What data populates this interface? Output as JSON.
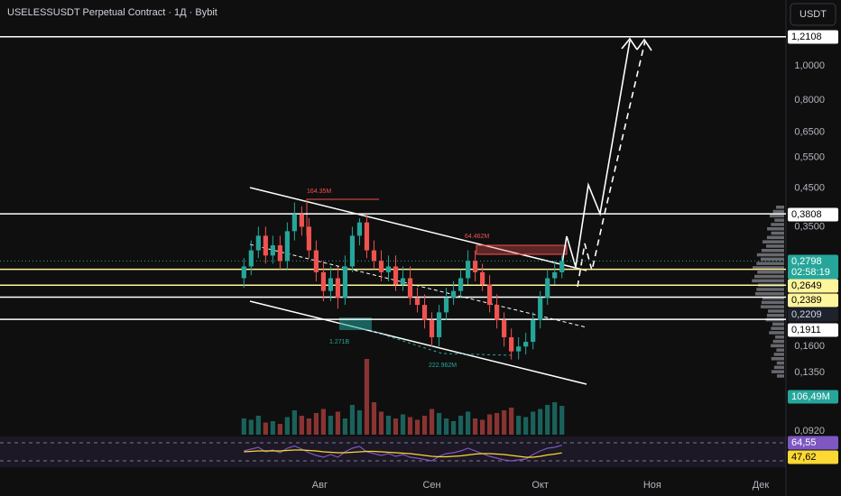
{
  "chart_data": {
    "type": "candlestick",
    "title": "USELESSUSDT Perpetual Contract · 1Д · Bybit",
    "currency": "USDT",
    "log_scale": true,
    "x": [
      0,
      2,
      4,
      6,
      8,
      10,
      12,
      14,
      16,
      18,
      20,
      22,
      24,
      26,
      28,
      30,
      32,
      34,
      36,
      38,
      40,
      42,
      44,
      46,
      48,
      50,
      52,
      54,
      56,
      58,
      60,
      62,
      64,
      66,
      68,
      70,
      72,
      74,
      76,
      78,
      80,
      82,
      84,
      86,
      88
    ],
    "open": [
      0.25,
      0.27,
      0.3,
      0.33,
      0.29,
      0.31,
      0.28,
      0.34,
      0.38,
      0.35,
      0.3,
      0.26,
      0.23,
      0.25,
      0.22,
      0.27,
      0.33,
      0.36,
      0.3,
      0.28,
      0.26,
      0.27,
      0.24,
      0.25,
      0.22,
      0.21,
      0.19,
      0.17,
      0.2,
      0.22,
      0.23,
      0.25,
      0.28,
      0.26,
      0.24,
      0.21,
      0.19,
      0.17,
      0.155,
      0.16,
      0.165,
      0.19,
      0.22,
      0.25,
      0.26
    ],
    "high": [
      0.285,
      0.32,
      0.35,
      0.35,
      0.33,
      0.33,
      0.36,
      0.41,
      0.4,
      0.37,
      0.32,
      0.28,
      0.27,
      0.27,
      0.29,
      0.35,
      0.37,
      0.38,
      0.32,
      0.3,
      0.29,
      0.29,
      0.27,
      0.27,
      0.235,
      0.225,
      0.2,
      0.21,
      0.235,
      0.245,
      0.265,
      0.3,
      0.3,
      0.275,
      0.255,
      0.225,
      0.2,
      0.18,
      0.17,
      0.175,
      0.2,
      0.23,
      0.265,
      0.28,
      0.29
    ],
    "low": [
      0.235,
      0.255,
      0.285,
      0.275,
      0.275,
      0.265,
      0.265,
      0.32,
      0.33,
      0.285,
      0.245,
      0.215,
      0.215,
      0.205,
      0.21,
      0.26,
      0.31,
      0.285,
      0.265,
      0.245,
      0.245,
      0.23,
      0.23,
      0.21,
      0.2,
      0.18,
      0.16,
      0.16,
      0.19,
      0.21,
      0.22,
      0.24,
      0.245,
      0.23,
      0.2,
      0.18,
      0.16,
      0.147,
      0.147,
      0.152,
      0.157,
      0.18,
      0.21,
      0.24,
      0.25
    ],
    "close": [
      0.27,
      0.3,
      0.33,
      0.29,
      0.31,
      0.28,
      0.34,
      0.38,
      0.35,
      0.3,
      0.26,
      0.23,
      0.25,
      0.22,
      0.27,
      0.33,
      0.36,
      0.3,
      0.28,
      0.26,
      0.27,
      0.24,
      0.25,
      0.22,
      0.21,
      0.19,
      0.17,
      0.2,
      0.22,
      0.23,
      0.25,
      0.28,
      0.26,
      0.24,
      0.21,
      0.19,
      0.17,
      0.155,
      0.16,
      0.165,
      0.19,
      0.22,
      0.25,
      0.26,
      0.2798
    ],
    "up_color": "#26a69a",
    "down_color": "#ef5350",
    "xlim": [
      -67.5,
      150
    ],
    "xticks": [
      {
        "value": 21,
        "label": "Авг"
      },
      {
        "value": 52,
        "label": "Сен"
      },
      {
        "value": 82,
        "label": "Окт"
      },
      {
        "value": 113,
        "label": "Ноя"
      },
      {
        "value": 143,
        "label": "Дек"
      }
    ],
    "ylim": [
      0.091,
      1.54
    ],
    "yticks": [
      {
        "value": 1,
        "label": "1,0000"
      },
      {
        "value": 0.8,
        "label": "0,8000"
      },
      {
        "value": 0.65,
        "label": "0,6500"
      },
      {
        "value": 0.55,
        "label": "0,5500"
      },
      {
        "value": 0.45,
        "label": "0,4500"
      },
      {
        "value": 0.35,
        "label": "0,3500"
      },
      {
        "value": 0.16,
        "label": "0,1600"
      },
      {
        "value": 0.135,
        "label": "0,1350"
      },
      {
        "value": 0.092,
        "label": "0,0920"
      }
    ],
    "levels": [
      {
        "value": 1.2108,
        "label": "1,2108",
        "color": "#ffffff"
      },
      {
        "value": 0.3808,
        "label": "0,3808",
        "color": "#ffffff"
      },
      {
        "value": 0.2649,
        "label": "0,2649",
        "color": "#fff59d"
      },
      {
        "value": 0.2389,
        "label": "0,2389",
        "color": "#fff59d"
      },
      {
        "value": 0.2209,
        "label": "0,2209",
        "color": "#ffffff"
      },
      {
        "value": 0.1911,
        "label": "0,1911",
        "color": "#ffffff"
      }
    ],
    "last_price": {
      "value": 0.2798,
      "label": "0,2798",
      "countdown": "02:58:19",
      "color": "#26a69a"
    },
    "volume": {
      "values": [
        60,
        55,
        70,
        45,
        50,
        40,
        65,
        90,
        70,
        60,
        80,
        95,
        70,
        85,
        60,
        110,
        90,
        280,
        120,
        85,
        70,
        60,
        75,
        65,
        55,
        70,
        95,
        80,
        60,
        50,
        70,
        85,
        60,
        55,
        75,
        80,
        90,
        100,
        70,
        65,
        85,
        95,
        110,
        120,
        106.49
      ],
      "last_label": "106,49M",
      "max": 300
    },
    "rsi": {
      "values": [
        52,
        56,
        60,
        50,
        54,
        48,
        58,
        63,
        56,
        48,
        42,
        38,
        44,
        38,
        50,
        58,
        62,
        50,
        46,
        42,
        46,
        40,
        44,
        38,
        36,
        33,
        30,
        40,
        46,
        48,
        52,
        58,
        52,
        46,
        40,
        36,
        32,
        30,
        32,
        34,
        44,
        52,
        58,
        60,
        64.55
      ],
      "ma": [
        50,
        51,
        52,
        52,
        52,
        52,
        53,
        54,
        54,
        53,
        52,
        50,
        49,
        48,
        48,
        49,
        50,
        51,
        51,
        50,
        49,
        48,
        47,
        46,
        44,
        42,
        40,
        39,
        39,
        40,
        41,
        43,
        45,
        46,
        46,
        45,
        44,
        42,
        40,
        38,
        38,
        40,
        43,
        45,
        47.62
      ],
      "labels": [
        "64,55",
        "47,62"
      ],
      "ylim": [
        20,
        80
      ],
      "bands": [
        70,
        30
      ],
      "color": "#7e57c2",
      "ma_color": "#fdd835"
    },
    "annotations": [
      "164.35M",
      "64.462M",
      "1.271B",
      "222.962M"
    ]
  }
}
